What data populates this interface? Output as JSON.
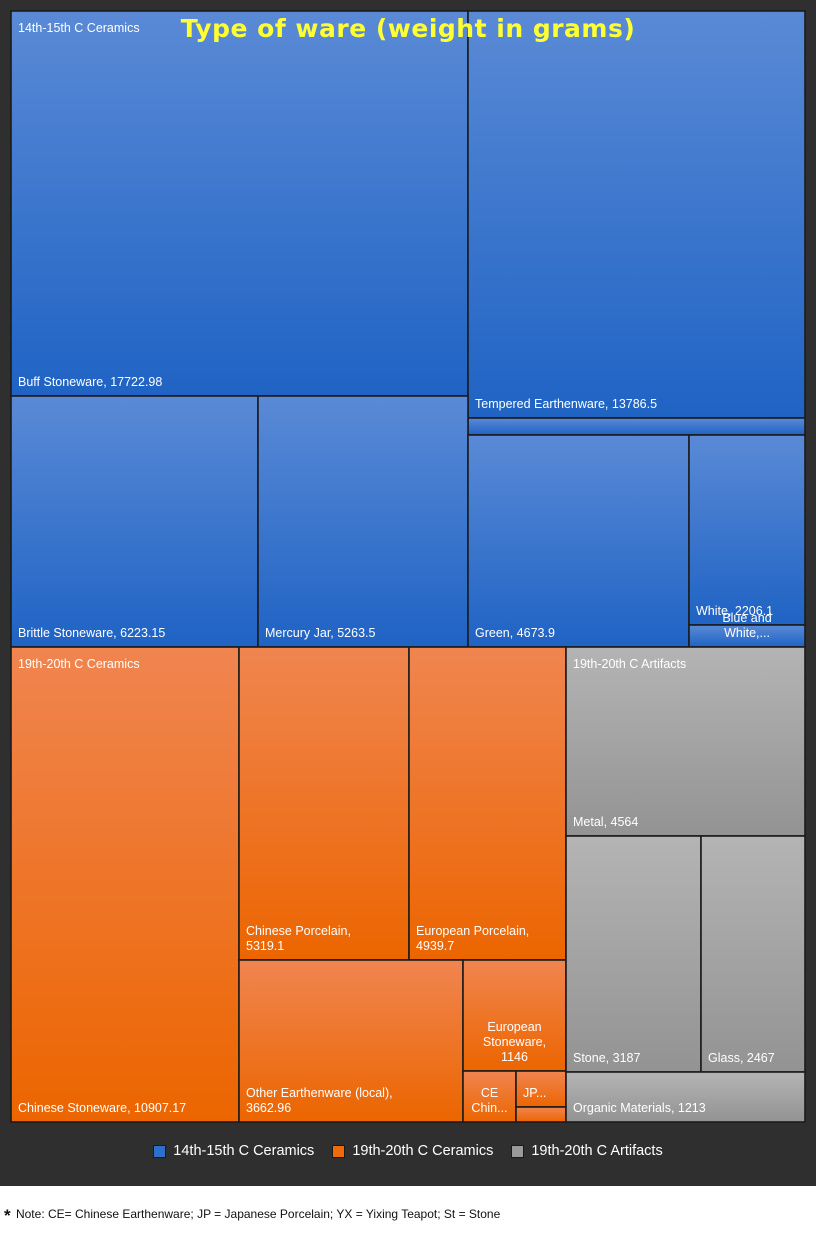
{
  "chart_data": {
    "type": "treemap",
    "title": "Type of ware (weight in grams)",
    "groups": [
      {
        "name": "14th-15th C Ceramics",
        "color": "#2e6fcc",
        "color_light": "#5a8fd8",
        "items": [
          {
            "label": "Buff Stoneware, 17722.98",
            "name": "Buff Stoneware",
            "value": 17722.98
          },
          {
            "label": "Tempered Earthenware, 13786.5",
            "name": "Tempered Earthenware",
            "value": 13786.5
          },
          {
            "label": "",
            "name": "",
            "value": null
          },
          {
            "label": "Brittle Stoneware, 6223.15",
            "name": "Brittle Stoneware",
            "value": 6223.15
          },
          {
            "label": "Mercury Jar, 5263.5",
            "name": "Mercury Jar",
            "value": 5263.5
          },
          {
            "label": "Green, 4673.9",
            "name": "Green",
            "value": 4673.9
          },
          {
            "label": "White, 2206.1",
            "name": "White",
            "value": 2206.1
          },
          {
            "label": "Blue and White,...",
            "name": "Blue and White",
            "value": null
          }
        ]
      },
      {
        "name": "19th-20th C Ceramics",
        "color": "#ee6a0c",
        "color_light": "#f28a52",
        "items": [
          {
            "label": "Chinese Stoneware, 10907.17",
            "name": "Chinese Stoneware",
            "value": 10907.17
          },
          {
            "label": "Chinese Porcelain, 5319.1",
            "name": "Chinese Porcelain",
            "value": 5319.1
          },
          {
            "label": "European Porcelain, 4939.7",
            "name": "European Porcelain",
            "value": 4939.7
          },
          {
            "label": "Other Earthenware (local), 3662.96",
            "name": "Other Earthenware (local)",
            "value": 3662.96
          },
          {
            "label": "European Stoneware, 1146",
            "name": "European Stoneware",
            "value": 1146
          },
          {
            "label": "CE Chin...",
            "name": "CE",
            "value": null
          },
          {
            "label": "JP...",
            "name": "JP",
            "value": null
          },
          {
            "label": "",
            "name": "",
            "value": null
          }
        ]
      },
      {
        "name": "19th-20th C Artifacts",
        "color": "#9a9a9a",
        "color_light": "#b3b3b3",
        "items": [
          {
            "label": "Metal, 4564",
            "name": "Metal",
            "value": 4564
          },
          {
            "label": "Stone, 3187",
            "name": "Stone",
            "value": 3187
          },
          {
            "label": "Glass, 2467",
            "name": "Glass",
            "value": 2467
          },
          {
            "label": "Organic Materials, 1213",
            "name": "Organic Materials",
            "value": 1213
          }
        ]
      }
    ],
    "legend": {
      "placement": "bottom",
      "entries": [
        "14th-15th C Ceramics",
        "19th-20th C Ceramics",
        "19th-20th C Artifacts"
      ]
    }
  },
  "footnote": {
    "marker": "*",
    "text": "Note: CE= Chinese Earthenware; JP = Japanese Porcelain; YX = Yixing Teapot; St = Stone"
  }
}
